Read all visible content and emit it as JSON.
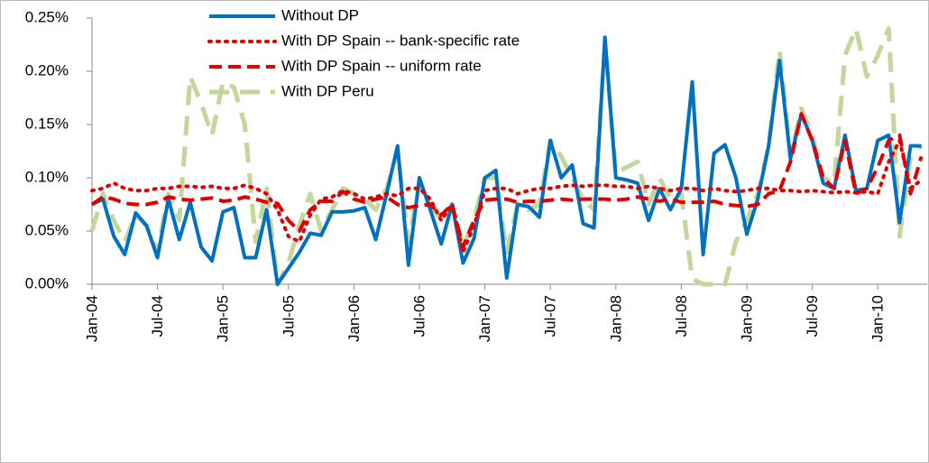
{
  "chart_data": {
    "type": "line",
    "categories": [
      "Jan-04",
      null,
      null,
      null,
      null,
      null,
      "Jul-04",
      null,
      null,
      null,
      null,
      null,
      "Jan-05",
      null,
      null,
      null,
      null,
      null,
      "Jul-05",
      null,
      null,
      null,
      null,
      null,
      "Jan-06",
      null,
      null,
      null,
      null,
      null,
      "Jul-06",
      null,
      null,
      null,
      null,
      null,
      "Jan-07",
      null,
      null,
      null,
      null,
      null,
      "Jul-07",
      null,
      null,
      null,
      null,
      null,
      "Jan-08",
      null,
      null,
      null,
      null,
      null,
      "Jul-08",
      null,
      null,
      null,
      null,
      null,
      "Jan-09",
      null,
      null,
      null,
      null,
      null,
      "Jul-09",
      null,
      null,
      null,
      null,
      null,
      "Jan-10",
      null,
      null,
      null,
      null
    ],
    "series": [
      {
        "name": "Without DP",
        "color": "#0070c0",
        "dash": "solid",
        "values": [
          0.075,
          0.08,
          0.045,
          0.028,
          0.067,
          0.055,
          0.025,
          0.08,
          0.042,
          0.077,
          0.035,
          0.022,
          0.068,
          0.072,
          0.025,
          0.025,
          0.07,
          0.0,
          0.015,
          0.03,
          0.048,
          0.046,
          0.068,
          0.068,
          0.069,
          0.072,
          0.042,
          0.085,
          0.13,
          0.018,
          0.1,
          0.07,
          0.038,
          0.075,
          0.02,
          0.043,
          0.1,
          0.107,
          0.006,
          0.075,
          0.073,
          0.063,
          0.135,
          0.1,
          0.112,
          0.057,
          0.053,
          0.232,
          0.1,
          0.098,
          0.095,
          0.06,
          0.09,
          0.07,
          0.09,
          0.19,
          0.028,
          0.123,
          0.131,
          0.1,
          0.047,
          0.08,
          0.13,
          0.21,
          0.118,
          0.16,
          0.135,
          0.095,
          0.09,
          0.14,
          0.088,
          0.09,
          0.135,
          0.14,
          0.058,
          0.13,
          0.13
        ]
      },
      {
        "name": "With DP Spain -- bank-specific rate",
        "color": "#e00000",
        "dash": "dotted",
        "values": [
          0.088,
          0.09,
          0.095,
          0.09,
          0.088,
          0.088,
          0.09,
          0.09,
          0.092,
          0.092,
          0.091,
          0.092,
          0.09,
          0.09,
          0.093,
          0.09,
          0.085,
          0.07,
          0.045,
          0.04,
          0.065,
          0.08,
          0.082,
          0.088,
          0.085,
          0.08,
          0.082,
          0.085,
          0.083,
          0.09,
          0.09,
          0.08,
          0.06,
          0.075,
          0.03,
          0.055,
          0.088,
          0.09,
          0.09,
          0.085,
          0.088,
          0.09,
          0.09,
          0.092,
          0.093,
          0.092,
          0.093,
          0.093,
          0.092,
          0.092,
          0.09,
          0.092,
          0.09,
          0.088,
          0.09,
          0.09,
          0.088,
          0.09,
          0.088,
          0.087,
          0.088,
          0.09,
          0.09,
          0.088,
          0.088,
          0.087,
          0.088,
          0.087,
          0.086,
          0.087,
          0.086,
          0.087,
          0.085,
          0.115,
          0.135,
          0.09,
          0.098
        ]
      },
      {
        "name": "With DP Spain -- uniform rate",
        "color": "#e00000",
        "dash": "dashed",
        "values": [
          0.075,
          0.082,
          0.08,
          0.076,
          0.075,
          0.075,
          0.077,
          0.082,
          0.08,
          0.079,
          0.08,
          0.081,
          0.078,
          0.079,
          0.082,
          0.08,
          0.077,
          0.076,
          0.06,
          0.05,
          0.07,
          0.078,
          0.078,
          0.087,
          0.08,
          0.077,
          0.08,
          0.082,
          0.075,
          0.072,
          0.074,
          0.075,
          0.065,
          0.075,
          0.035,
          0.06,
          0.079,
          0.08,
          0.08,
          0.077,
          0.078,
          0.078,
          0.079,
          0.08,
          0.079,
          0.08,
          0.08,
          0.08,
          0.079,
          0.08,
          0.082,
          0.08,
          0.078,
          0.08,
          0.077,
          0.077,
          0.077,
          0.078,
          0.075,
          0.074,
          0.073,
          0.075,
          0.085,
          0.088,
          0.115,
          0.16,
          0.135,
          0.1,
          0.09,
          0.135,
          0.085,
          0.09,
          0.11,
          0.135,
          0.14,
          0.085,
          0.12
        ]
      },
      {
        "name": "With DP Peru",
        "color": "#c3d69b",
        "dash": "longdash",
        "values": [
          0.05,
          0.085,
          0.06,
          0.04,
          0.065,
          0.055,
          0.03,
          0.085,
          0.06,
          0.195,
          0.17,
          0.14,
          0.19,
          0.185,
          0.15,
          0.04,
          0.09,
          0.0,
          0.02,
          0.055,
          0.085,
          0.05,
          0.07,
          0.09,
          0.085,
          0.08,
          0.07,
          0.09,
          0.125,
          0.04,
          0.095,
          0.075,
          0.06,
          0.075,
          0.035,
          0.06,
          0.1,
          0.1,
          0.03,
          0.075,
          0.07,
          0.075,
          0.135,
          0.12,
          0.1,
          0.08,
          0.07,
          0.225,
          0.105,
          0.11,
          0.115,
          0.075,
          0.1,
          0.08,
          0.085,
          0.005,
          0.0,
          0.0,
          0.0,
          0.04,
          0.06,
          0.085,
          0.13,
          0.22,
          0.12,
          0.165,
          0.14,
          0.1,
          0.095,
          0.215,
          0.24,
          0.195,
          0.215,
          0.24,
          0.045,
          0.12,
          0.13
        ]
      }
    ],
    "ylim": [
      0,
      0.25
    ],
    "yticks": [
      {
        "value": 0,
        "label": "0.00%"
      },
      {
        "value": 0.05,
        "label": "0.05%"
      },
      {
        "value": 0.1,
        "label": "0.10%"
      },
      {
        "value": 0.15,
        "label": "0.15%"
      },
      {
        "value": 0.2,
        "label": "0.20%"
      },
      {
        "value": 0.25,
        "label": "0.25%"
      }
    ],
    "xtick_color": "#e00000"
  }
}
